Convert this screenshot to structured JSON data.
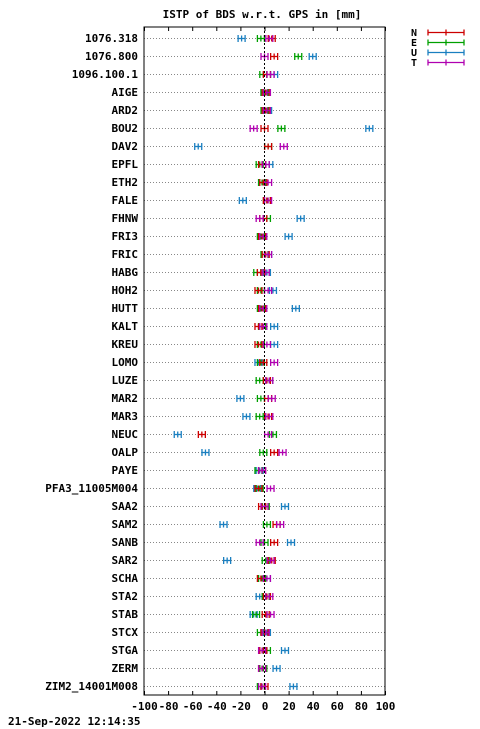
{
  "chart_data": {
    "type": "scatter",
    "title": "ISTP of BDS w.r.t. GPS in [mm]",
    "xlim": [
      -100,
      100
    ],
    "xticks": [
      "-100",
      "-80",
      "-60",
      "-40",
      "-20",
      "0",
      "20",
      "40",
      "60",
      "80",
      "100"
    ],
    "grid": true,
    "legend_position": "top-right, outside plot",
    "series": [
      {
        "name": "N",
        "color": "#cc0000"
      },
      {
        "name": "E",
        "color": "#00a000"
      },
      {
        "name": "U",
        "color": "#1a7fc0"
      },
      {
        "name": "T",
        "color": "#b000b0"
      }
    ],
    "stations": [
      "1076.318",
      "1076.800",
      "1096.100.1",
      "AIGE",
      "ARD2",
      "BOU2",
      "DAV2",
      "EPFL",
      "ETH2",
      "FALE",
      "FHNW",
      "FRI3",
      "FRIC",
      "HABG",
      "HOH2",
      "HUTT",
      "KALT",
      "KREU",
      "LOMO",
      "LUZE",
      "MAR2",
      "MAR3",
      "NEUC",
      "OALP",
      "PAYE",
      "PFA3_11005M004",
      "SAA2",
      "SAM2",
      "SANB",
      "SAR2",
      "SCHA",
      "STA2",
      "STAB",
      "STCX",
      "STGA",
      "ZERM",
      "ZIM2_14001M008"
    ],
    "values": {
      "N": [
        6,
        8,
        2,
        1,
        1,
        0,
        3,
        -2,
        -1,
        2,
        -1,
        -2,
        1,
        -3,
        -5,
        -2,
        -5,
        -5,
        -1,
        2,
        3,
        3,
        -52,
        8,
        -2,
        -5,
        -2,
        10,
        8,
        6,
        -3,
        2,
        1,
        0,
        -1,
        -2,
        0
      ],
      "E": [
        -3,
        28,
        -1,
        0,
        0,
        14,
        3,
        -4,
        -2,
        2,
        2,
        -3,
        0,
        -6,
        -3,
        -3,
        -2,
        -3,
        -3,
        -4,
        -3,
        -4,
        7,
        -1,
        -5,
        -4,
        1,
        2,
        0,
        1,
        -2,
        1,
        -7,
        -3,
        2,
        -1,
        -3
      ],
      "U": [
        -19,
        40,
        8,
        0,
        3,
        87,
        -55,
        4,
        -2,
        -18,
        30,
        20,
        3,
        2,
        7,
        26,
        8,
        8,
        -5,
        4,
        -20,
        -15,
        -72,
        -49,
        -4,
        -6,
        17,
        -34,
        22,
        -31,
        2,
        -4,
        -9,
        2,
        17,
        10,
        24
      ],
      "T": [
        4,
        0,
        5,
        2,
        2,
        -9,
        16,
        1,
        3,
        3,
        -4,
        -1,
        3,
        1,
        3,
        -1,
        -1,
        2,
        8,
        4,
        6,
        4,
        3,
        15,
        -2,
        5,
        0,
        13,
        -4,
        5,
        2,
        4,
        5,
        1,
        -2,
        -2,
        -2
      ]
    }
  },
  "footer": {
    "timestamp": "21-Sep-2022 12:14:35"
  }
}
